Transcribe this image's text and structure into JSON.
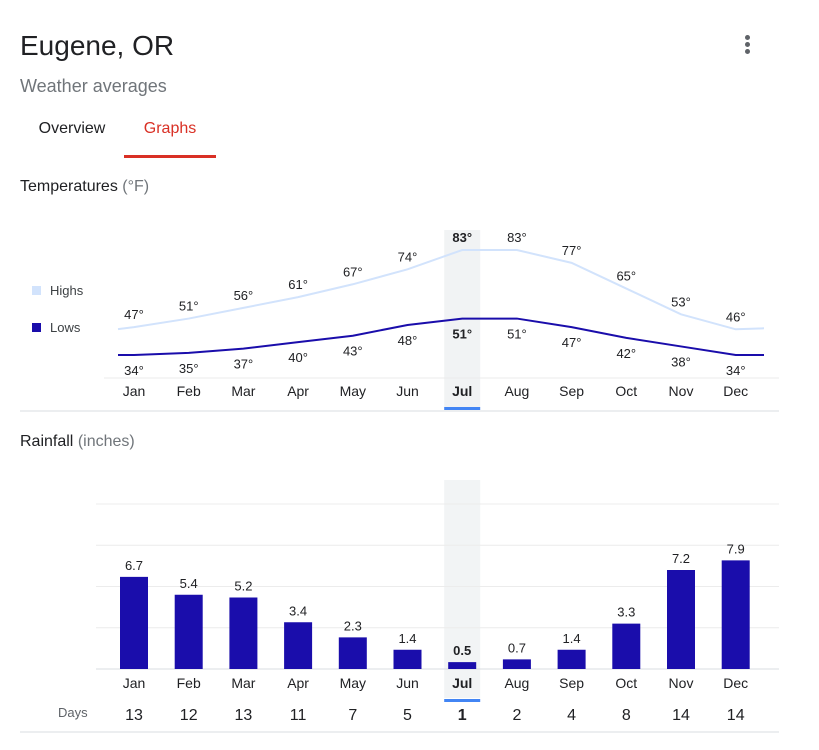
{
  "header": {
    "title": "Eugene, OR",
    "subtitle": "Weather averages",
    "menu_icon": "more-vert-icon"
  },
  "tabs": [
    {
      "label": "Overview",
      "active": false
    },
    {
      "label": "Graphs",
      "active": true
    }
  ],
  "colors": {
    "accent": "#d93025",
    "highs": "#d2e3fc",
    "lows": "#1a0dab",
    "rain_bar": "#1a0dab",
    "selected_marker": "#4285f4",
    "selected_band": "#f1f3f4"
  },
  "selected_month": "Jul",
  "temperatures": {
    "title": "Temperatures",
    "unit": "(°F)",
    "legend": {
      "highs": "Highs",
      "lows": "Lows"
    }
  },
  "rainfall": {
    "title": "Rainfall",
    "unit": "(inches)",
    "days_label": "Days"
  },
  "chart_data": [
    {
      "type": "line",
      "title": "Temperatures",
      "unit": "°F",
      "categories": [
        "Jan",
        "Feb",
        "Mar",
        "Apr",
        "May",
        "Jun",
        "Jul",
        "Aug",
        "Sep",
        "Oct",
        "Nov",
        "Dec"
      ],
      "series": [
        {
          "name": "Highs",
          "values": [
            47,
            51,
            56,
            61,
            67,
            74,
            83,
            83,
            77,
            65,
            53,
            46
          ],
          "labels": [
            "47°",
            "51°",
            "56°",
            "61°",
            "67°",
            "74°",
            "83°",
            "83°",
            "77°",
            "65°",
            "53°",
            "46°"
          ]
        },
        {
          "name": "Lows",
          "values": [
            34,
            35,
            37,
            40,
            43,
            48,
            51,
            51,
            47,
            42,
            38,
            34
          ],
          "labels": [
            "34°",
            "35°",
            "37°",
            "40°",
            "43°",
            "48°",
            "51°",
            "51°",
            "47°",
            "42°",
            "38°",
            "34°"
          ]
        }
      ],
      "legend": "left"
    },
    {
      "type": "bar",
      "title": "Rainfall",
      "unit": "inches",
      "categories": [
        "Jan",
        "Feb",
        "Mar",
        "Apr",
        "May",
        "Jun",
        "Jul",
        "Aug",
        "Sep",
        "Oct",
        "Nov",
        "Dec"
      ],
      "values": [
        6.7,
        5.4,
        5.2,
        3.4,
        2.3,
        1.4,
        0.5,
        0.7,
        1.4,
        3.3,
        7.2,
        7.9
      ],
      "value_labels": [
        "6.7",
        "5.4",
        "5.2",
        "3.4",
        "2.3",
        "1.4",
        "0.5",
        "0.7",
        "1.4",
        "3.3",
        "7.2",
        "7.9"
      ],
      "days": [
        "13",
        "12",
        "13",
        "11",
        "7",
        "5",
        "1",
        "2",
        "4",
        "8",
        "14",
        "14"
      ],
      "ylim": [
        0,
        12
      ],
      "grid": true
    }
  ]
}
